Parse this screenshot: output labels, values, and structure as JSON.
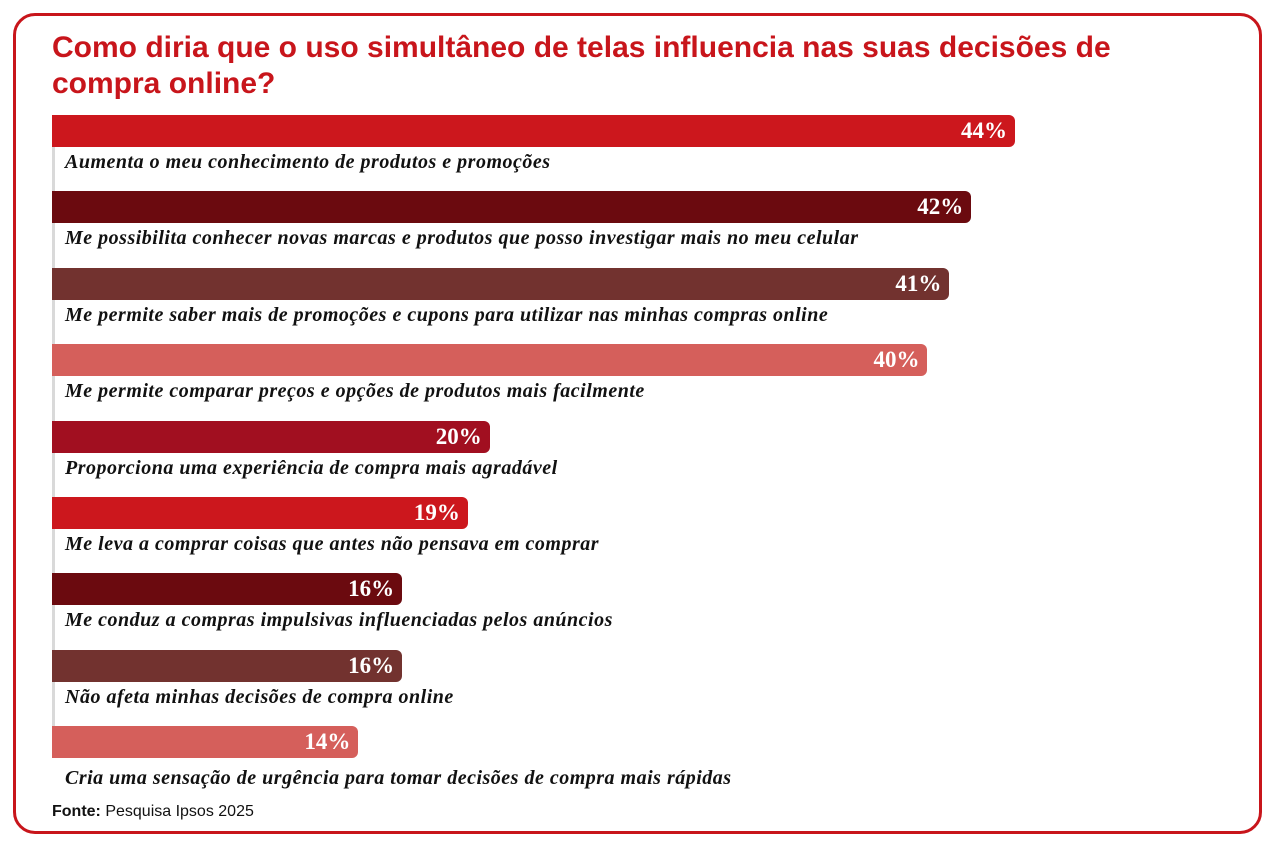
{
  "chart_data": {
    "type": "bar",
    "orientation": "horizontal",
    "title": "Como diria que o uso simultâneo de telas influencia nas suas decisões de compra online?",
    "categories": [
      "Aumenta o meu conhecimento de produtos e promoções",
      "Me possibilita conhecer novas marcas e produtos que posso investigar mais no meu celular",
      "Me permite saber mais de promoções e cupons para utilizar nas minhas compras online",
      "Me permite comparar preços e opções de produtos mais facilmente",
      "Proporciona uma experiência de compra mais agradável",
      "Me leva a comprar coisas que antes não pensava em comprar",
      "Me conduz a compras impulsivas influenciadas pelos anúncios",
      "Não afeta minhas decisões de compra online",
      "Cria uma sensação de urgência para tomar decisões de compra mais rápidas"
    ],
    "values": [
      44,
      42,
      41,
      40,
      20,
      19,
      16,
      16,
      14
    ],
    "value_labels": [
      "44%",
      "42%",
      "41%",
      "40%",
      "20%",
      "19%",
      "16%",
      "16%",
      "14%"
    ],
    "colors": [
      "#cc171d",
      "#6b0a0f",
      "#72322f",
      "#d55f5b",
      "#a10f20",
      "#cc171d",
      "#6b0a0f",
      "#72322f",
      "#d55f5b"
    ],
    "unit": "%",
    "grid": false,
    "legend": false
  },
  "source": {
    "label": "Fonte:",
    "text": " Pesquisa Ipsos 2025"
  }
}
